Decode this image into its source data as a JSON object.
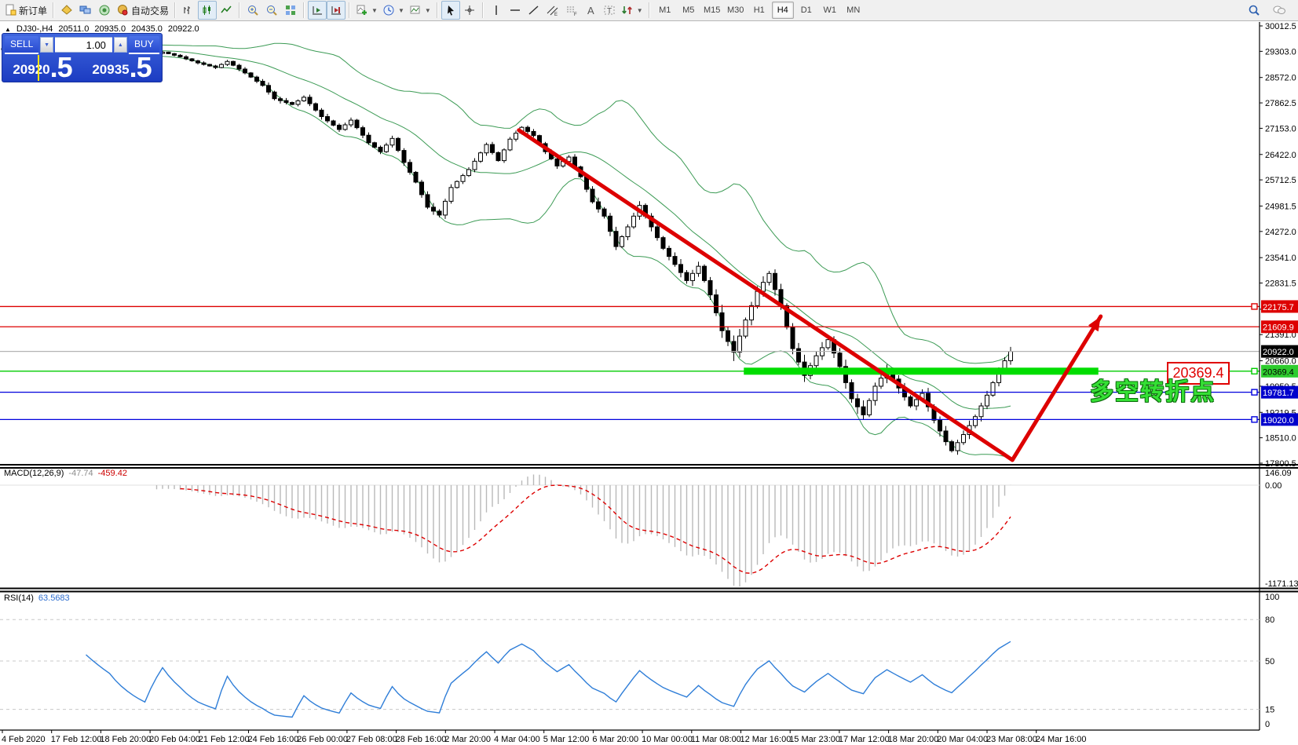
{
  "toolbar": {
    "new_order_label": "新订单",
    "auto_trading_label": "自动交易",
    "timeframes": [
      "M1",
      "M5",
      "M15",
      "M30",
      "H1",
      "H4",
      "D1",
      "W1",
      "MN"
    ],
    "active_timeframe": "H4"
  },
  "chart_header": {
    "symbol": "DJ30-,H4",
    "open": "20511.0",
    "high": "20935.0",
    "low": "20435.0",
    "close": "20922.0"
  },
  "trade_panel": {
    "sell_label": "SELL",
    "buy_label": "BUY",
    "volume": "1.00",
    "sell_price": "20920",
    "sell_fraction": ".5",
    "buy_price": "20935",
    "buy_fraction": ".5"
  },
  "annotations": {
    "level_callout": "20369.4",
    "turning_point_text": "多空转折点"
  },
  "indicators": {
    "macd": {
      "label": "MACD(12,26,9)",
      "value_main": "-47.74",
      "value_signal": "-459.42",
      "axis": [
        {
          "v": 146.09,
          "text": "146.09"
        },
        {
          "v": 0,
          "text": "0.00"
        },
        {
          "v": -1171.13,
          "text": "-1171.13"
        }
      ]
    },
    "rsi": {
      "label": "RSI(14)",
      "value": "63.5683",
      "axis": [
        {
          "v": 100,
          "text": "100"
        },
        {
          "v": 80,
          "text": "80"
        },
        {
          "v": 50,
          "text": "50"
        },
        {
          "v": 15,
          "text": "15"
        },
        {
          "v": 0,
          "text": "0"
        }
      ],
      "levels": [
        80,
        50,
        15
      ]
    }
  },
  "chart_data": {
    "type": "candlestick",
    "title": "DJ30-,H4",
    "price_range": {
      "top": 30012.5,
      "bottom": 17800.5
    },
    "price_ticks": [
      "30012.5",
      "29303.0",
      "28572.0",
      "27862.5",
      "27153.0",
      "26422.0",
      "25712.5",
      "24981.5",
      "24272.0",
      "23541.0",
      "22831.5",
      "22100.5",
      "21391.0",
      "20660.0",
      "19950.5",
      "19219.5",
      "18510.0",
      "17800.5"
    ],
    "price_badges": [
      {
        "text": "22175.7",
        "price": 22175.7,
        "bg": "#dd0000",
        "fg": "#ffffff"
      },
      {
        "text": "21609.9",
        "price": 21609.9,
        "bg": "#dd0000",
        "fg": "#ffffff"
      },
      {
        "text": "20922.0",
        "price": 20922.0,
        "bg": "#000000",
        "fg": "#ffffff"
      },
      {
        "text": "20369.4",
        "price": 20369.4,
        "bg": "#2ecc2e",
        "fg": "#000000"
      },
      {
        "text": "19781.7",
        "price": 19781.7,
        "bg": "#0000cc",
        "fg": "#ffffff"
      },
      {
        "text": "19020.0",
        "price": 19020.0,
        "bg": "#0000cc",
        "fg": "#ffffff"
      }
    ],
    "hlines": [
      {
        "price": 22175.7,
        "color": "#dd0000",
        "marker": true
      },
      {
        "price": 21609.9,
        "color": "#dd0000",
        "marker": false
      },
      {
        "price": 20922.0,
        "color": "#b4b4b4",
        "marker": false
      },
      {
        "price": 20369.4,
        "color": "#00cc00",
        "marker": true
      },
      {
        "price": 19781.7,
        "color": "#0000dd",
        "marker": true
      },
      {
        "price": 19020.0,
        "color": "#0000dd",
        "marker": true
      }
    ],
    "support_zone": {
      "price": 20369.4,
      "from_bar": 125.7,
      "to_bar": 185.9,
      "color": "#00dd00",
      "thickness": 9
    },
    "trend_lines": [
      {
        "from_bar": 87.5,
        "from_price": 27100,
        "to_bar": 171.3,
        "to_price": 17890,
        "color": "#dd0000",
        "width": 5,
        "arrow": false
      },
      {
        "from_bar": 171.3,
        "from_price": 17890,
        "to_bar": 186.3,
        "to_price": 21900,
        "color": "#dd0000",
        "width": 5,
        "arrow": true
      }
    ],
    "bar_count": 172,
    "close_waypoints": [
      [
        0,
        29380,
        60
      ],
      [
        6,
        29310,
        60
      ],
      [
        12,
        29430,
        60
      ],
      [
        18,
        29340,
        70
      ],
      [
        24,
        29170,
        80
      ],
      [
        27,
        29280,
        80
      ],
      [
        30,
        29150,
        90
      ],
      [
        33,
        28980,
        100
      ],
      [
        36,
        28850,
        120
      ],
      [
        38,
        29020,
        100
      ],
      [
        41,
        28700,
        140
      ],
      [
        44,
        28350,
        170
      ],
      [
        46,
        27980,
        190
      ],
      [
        49,
        27820,
        170
      ],
      [
        51,
        28020,
        150
      ],
      [
        54,
        27480,
        190
      ],
      [
        57,
        27120,
        190
      ],
      [
        59,
        27380,
        160
      ],
      [
        62,
        26750,
        200
      ],
      [
        64,
        26500,
        190
      ],
      [
        66,
        26870,
        170
      ],
      [
        68,
        26200,
        210
      ],
      [
        70,
        25650,
        230
      ],
      [
        72,
        24950,
        260
      ],
      [
        74,
        24730,
        260
      ],
      [
        76,
        25500,
        220
      ],
      [
        79,
        26000,
        190
      ],
      [
        82,
        26700,
        180
      ],
      [
        84,
        26250,
        190
      ],
      [
        86,
        26850,
        170
      ],
      [
        88,
        27180,
        160
      ],
      [
        90,
        26950,
        170
      ],
      [
        92,
        26500,
        190
      ],
      [
        94,
        26100,
        200
      ],
      [
        96,
        26350,
        180
      ],
      [
        98,
        25800,
        220
      ],
      [
        100,
        25100,
        250
      ],
      [
        102,
        24700,
        270
      ],
      [
        104,
        23850,
        320
      ],
      [
        106,
        24400,
        280
      ],
      [
        108,
        25000,
        260
      ],
      [
        110,
        24400,
        280
      ],
      [
        112,
        23800,
        300
      ],
      [
        114,
        23350,
        320
      ],
      [
        116,
        22900,
        350
      ],
      [
        118,
        23300,
        320
      ],
      [
        120,
        22500,
        400
      ],
      [
        122,
        21500,
        500
      ],
      [
        124,
        20900,
        550
      ],
      [
        126,
        21800,
        450
      ],
      [
        128,
        22600,
        400
      ],
      [
        130,
        23100,
        350
      ],
      [
        132,
        22200,
        400
      ],
      [
        134,
        21000,
        450
      ],
      [
        136,
        20250,
        450
      ],
      [
        138,
        20800,
        400
      ],
      [
        140,
        21250,
        380
      ],
      [
        142,
        20500,
        400
      ],
      [
        144,
        19600,
        450
      ],
      [
        146,
        19150,
        450
      ],
      [
        148,
        19950,
        400
      ],
      [
        150,
        20400,
        350
      ],
      [
        152,
        19900,
        350
      ],
      [
        154,
        19400,
        350
      ],
      [
        156,
        19750,
        330
      ],
      [
        158,
        19000,
        350
      ],
      [
        160,
        18400,
        350
      ],
      [
        161,
        18150,
        330
      ],
      [
        163,
        18600,
        320
      ],
      [
        165,
        19100,
        300
      ],
      [
        167,
        19700,
        300
      ],
      [
        169,
        20400,
        300
      ],
      [
        171,
        20922,
        280
      ]
    ],
    "bollinger": {
      "period": 20,
      "deviation": 2,
      "color": "#3c9b55"
    },
    "time_labels": [
      "4 Feb 2020",
      "17 Feb 12:00",
      "18 Feb 20:00",
      "20 Feb 04:00",
      "21 Feb 12:00",
      "24 Feb 16:00",
      "26 Feb 00:00",
      "27 Feb 08:00",
      "28 Feb 16:00",
      "2 Mar 20:00",
      "4 Mar 04:00",
      "5 Mar 12:00",
      "6 Mar 20:00",
      "10 Mar 00:00",
      "11 Mar 08:00",
      "12 Mar 16:00",
      "15 Mar 23:00",
      "17 Mar 12:00",
      "18 Mar 20:00",
      "20 Mar 04:00",
      "23 Mar 08:00",
      "24 Mar 16:00"
    ]
  }
}
